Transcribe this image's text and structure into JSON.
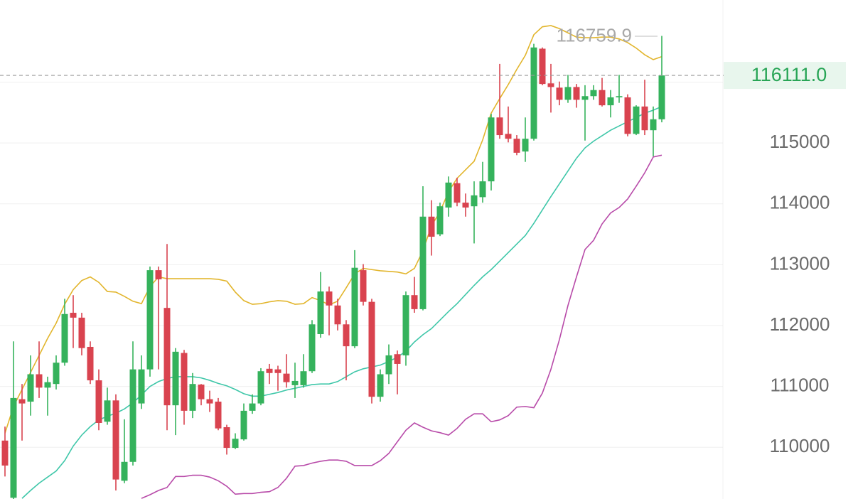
{
  "chart_data": {
    "type": "candlestick",
    "ylim": [
      109150,
      117350
    ],
    "yticks": [
      110000,
      111000,
      112000,
      113000,
      114000,
      115000,
      116000
    ],
    "grid": true,
    "up_color": "#35b25c",
    "down_color": "#d9434f",
    "candles": {
      "open": [
        110110,
        109170,
        110790,
        110750,
        111200,
        110980,
        111040,
        111390,
        112210,
        112130,
        111650,
        111100,
        110420,
        110770,
        109450,
        109760,
        110720,
        111280,
        112910,
        112290,
        110690,
        111550,
        110600,
        111030,
        110790,
        110750,
        110330,
        109990,
        110130,
        110600,
        110720,
        111290,
        111280,
        111210,
        111020,
        111020,
        111250,
        111860,
        112560,
        112330,
        112020,
        111660,
        112910,
        112390,
        110830,
        111200,
        111530,
        111510,
        112500,
        112270,
        113790,
        113500,
        113940,
        114340,
        114020,
        113960,
        114110,
        114370,
        115420,
        115150,
        115070,
        114860,
        115070,
        116550,
        115980,
        115910,
        115710,
        115920,
        115710,
        115770,
        115870,
        115620,
        115750,
        115750,
        115150,
        115600,
        115210,
        115390
      ],
      "high": [
        110340,
        111740,
        111040,
        111510,
        111740,
        111160,
        111510,
        112440,
        112500,
        112210,
        111740,
        111280,
        110980,
        110870,
        110460,
        111740,
        111510,
        112970,
        112970,
        113340,
        111630,
        111600,
        111220,
        111040,
        110930,
        110810,
        110370,
        110230,
        110720,
        110870,
        111300,
        111370,
        111340,
        111530,
        111390,
        111530,
        112090,
        112880,
        112640,
        112440,
        112090,
        113240,
        113010,
        112440,
        111280,
        111690,
        111590,
        112560,
        112800,
        114290,
        114060,
        114020,
        114450,
        114430,
        114170,
        114370,
        114690,
        115480,
        116300,
        115600,
        115130,
        115420,
        116630,
        116570,
        116300,
        116010,
        116120,
        115970,
        115950,
        115950,
        116070,
        115870,
        116120,
        115800,
        115620,
        116040,
        115600,
        116759.9
      ],
      "low": [
        109520,
        109150,
        110110,
        110520,
        110810,
        110520,
        110950,
        111340,
        111630,
        111510,
        111040,
        110280,
        110370,
        109290,
        109410,
        109700,
        110630,
        111160,
        111280,
        110280,
        110200,
        110370,
        110480,
        110690,
        110580,
        110280,
        109880,
        109970,
        110110,
        110550,
        110690,
        111040,
        110930,
        110980,
        110810,
        110980,
        111220,
        111800,
        111840,
        111920,
        111100,
        111630,
        112330,
        110720,
        110750,
        111040,
        110870,
        111340,
        112210,
        112250,
        113150,
        113470,
        113790,
        113960,
        113790,
        113350,
        114020,
        114220,
        115070,
        115010,
        114800,
        114690,
        115040,
        115950,
        115500,
        115620,
        115660,
        115580,
        115040,
        115710,
        115600,
        115420,
        115660,
        115110,
        115130,
        115130,
        114780,
        115340
      ],
      "close": [
        109700,
        110810,
        110720,
        111200,
        110980,
        111070,
        111390,
        112190,
        112130,
        111630,
        111100,
        110400,
        110770,
        109470,
        109760,
        111280,
        111280,
        112910,
        112760,
        110690,
        111570,
        110600,
        111040,
        110790,
        110720,
        110310,
        109990,
        110140,
        110600,
        110720,
        111250,
        111220,
        111220,
        111070,
        111090,
        111250,
        112020,
        112560,
        112330,
        112020,
        111660,
        112950,
        112390,
        110830,
        111200,
        111510,
        111370,
        112500,
        112270,
        113790,
        113460,
        113960,
        114350,
        114020,
        113940,
        114140,
        114370,
        115420,
        115130,
        115070,
        114840,
        115070,
        116570,
        115970,
        115920,
        115710,
        115920,
        115710,
        115770,
        115870,
        115620,
        115750,
        115770,
        115150,
        115600,
        115210,
        115390,
        116111
      ]
    },
    "series": [
      {
        "color": "#e2b52c",
        "values": [
          110230,
          110670,
          110950,
          111230,
          111510,
          111790,
          112040,
          112350,
          112590,
          112740,
          112800,
          112710,
          112560,
          112550,
          112480,
          112400,
          112360,
          112640,
          112800,
          112770,
          112770,
          112770,
          112770,
          112770,
          112770,
          112760,
          112730,
          112550,
          112410,
          112350,
          112360,
          112390,
          112410,
          112400,
          112350,
          112360,
          112460,
          112410,
          112340,
          112400,
          112620,
          112850,
          112940,
          112920,
          112900,
          112890,
          112880,
          112850,
          112940,
          113230,
          113640,
          113870,
          114200,
          114420,
          114560,
          114700,
          115050,
          115490,
          115730,
          115960,
          116210,
          116440,
          116780,
          116910,
          116930,
          116880,
          116810,
          116740,
          116730,
          116730,
          116740,
          116740,
          116710,
          116650,
          116560,
          116450,
          116370,
          116420
        ]
      },
      {
        "color": "#3fc7a9",
        "values": [
          null,
          null,
          109160,
          109290,
          109410,
          109510,
          109610,
          109780,
          110020,
          110200,
          110340,
          110450,
          110510,
          110560,
          110630,
          110730,
          110860,
          111000,
          111080,
          111130,
          111160,
          111160,
          111160,
          111140,
          111100,
          111050,
          111010,
          110950,
          110880,
          110840,
          110840,
          110870,
          110900,
          110940,
          110970,
          111000,
          111030,
          111040,
          111040,
          111080,
          111160,
          111240,
          111290,
          111320,
          111350,
          111410,
          111480,
          111580,
          111730,
          111850,
          111950,
          112090,
          112230,
          112360,
          112510,
          112660,
          112800,
          112920,
          113060,
          113200,
          113340,
          113480,
          113680,
          113900,
          114120,
          114330,
          114540,
          114750,
          114920,
          115030,
          115120,
          115210,
          115280,
          115350,
          115420,
          115490,
          115540,
          115600
        ]
      },
      {
        "color": "#b84ba9",
        "values": [
          null,
          null,
          null,
          null,
          null,
          null,
          null,
          null,
          null,
          null,
          null,
          null,
          null,
          null,
          null,
          null,
          109160,
          109220,
          109290,
          109340,
          109520,
          109520,
          109540,
          109540,
          109510,
          109450,
          109360,
          109230,
          109240,
          109240,
          109260,
          109270,
          109340,
          109490,
          109690,
          109700,
          109740,
          109770,
          109790,
          109790,
          109770,
          109700,
          109700,
          109700,
          109780,
          109900,
          110090,
          110280,
          110400,
          110330,
          110270,
          110240,
          110200,
          110310,
          110460,
          110550,
          110550,
          110420,
          110450,
          110520,
          110660,
          110670,
          110650,
          110890,
          111280,
          111770,
          112330,
          112800,
          113250,
          113400,
          113670,
          113850,
          113940,
          114080,
          114290,
          114510,
          114770,
          114800
        ]
      }
    ],
    "high_label": "116759.9",
    "last_label": "116111.0"
  }
}
